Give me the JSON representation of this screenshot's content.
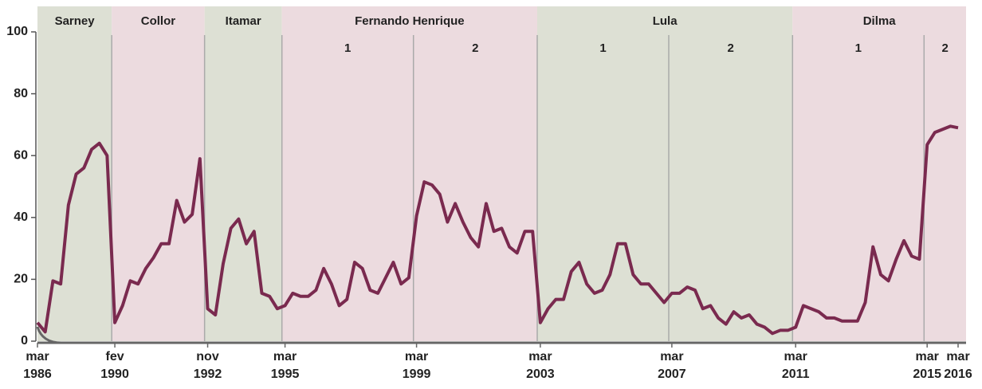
{
  "chart_data": {
    "type": "line",
    "categories": [
      "mar\n1986",
      null,
      null,
      null,
      null,
      null,
      null,
      null,
      null,
      null,
      "fev\n1990",
      null,
      null,
      null,
      null,
      null,
      null,
      null,
      null,
      null,
      null,
      null,
      "nov\n1992",
      null,
      null,
      null,
      null,
      null,
      null,
      null,
      null,
      null,
      "mar\n1995",
      null,
      null,
      null,
      null,
      null,
      null,
      null,
      null,
      null,
      null,
      null,
      null,
      null,
      null,
      null,
      null,
      "mar\n1999",
      null,
      null,
      null,
      null,
      null,
      null,
      null,
      null,
      null,
      null,
      null,
      null,
      null,
      null,
      null,
      "mar\n2003",
      null,
      null,
      null,
      null,
      null,
      null,
      null,
      null,
      null,
      null,
      null,
      null,
      null,
      null,
      null,
      null,
      "mar\n2007",
      null,
      null,
      null,
      null,
      null,
      null,
      null,
      null,
      null,
      null,
      null,
      null,
      null,
      null,
      null,
      "mar\n2011",
      null,
      null,
      null,
      null,
      null,
      null,
      null,
      null,
      null,
      null,
      null,
      null,
      null,
      null,
      null,
      null,
      "mar\n2015",
      null,
      null,
      null,
      "mar\n2016"
    ],
    "series": [
      {
        "color": "#7a2a4f",
        "values": [
          6,
          3,
          19.5,
          18.5,
          44,
          54,
          56,
          62,
          64,
          60,
          6,
          11.5,
          19.5,
          18.5,
          23.5,
          27,
          31.5,
          31.5,
          45.5,
          38.5,
          41,
          59,
          10.5,
          8.5,
          25,
          36.5,
          39.5,
          31.5,
          35.5,
          15.5,
          14.5,
          10.5,
          11.5,
          15.5,
          14.5,
          14.5,
          16.5,
          23.5,
          18.5,
          11.5,
          13.5,
          25.5,
          23.5,
          16.5,
          15.5,
          20.5,
          25.5,
          18.5,
          20.5,
          40.5,
          51.5,
          50.5,
          47.5,
          38.5,
          44.5,
          38.5,
          33.5,
          30.5,
          44.5,
          35.5,
          36.5,
          30.5,
          28.5,
          35.5,
          35.5,
          6,
          10.5,
          13.5,
          13.5,
          22.5,
          25.5,
          18.5,
          15.5,
          16.5,
          21.5,
          31.5,
          31.5,
          21.5,
          18.5,
          18.5,
          15.5,
          12.5,
          15.5,
          15.5,
          17.5,
          16.5,
          10.5,
          11.5,
          7.5,
          5.5,
          9.5,
          7.5,
          8.5,
          5.5,
          4.5,
          2.5,
          3.5,
          3.5,
          4.5,
          11.5,
          10.5,
          9.5,
          7.5,
          7.5,
          6.5,
          6.5,
          6.5,
          12.5,
          30.5,
          21.5,
          19.5,
          26.5,
          32.5,
          27.5,
          26.5,
          63.5,
          67.5,
          68.5,
          69.5,
          69
        ]
      }
    ],
    "ylim": [
      0,
      100
    ],
    "yticks": [
      0,
      20,
      40,
      60,
      80,
      100
    ],
    "periods": [
      {
        "name": "Sarney",
        "start": 0,
        "end": 10,
        "color": "#dde0d4"
      },
      {
        "name": "Collor",
        "start": 10,
        "end": 22,
        "color": "#ecdbdf"
      },
      {
        "name": "Itamar",
        "start": 22,
        "end": 32,
        "color": "#dde0d4"
      },
      {
        "name": "Fernando Henrique",
        "start": 32,
        "end": 65,
        "color": "#ecdbdf",
        "terms": [
          {
            "label": "1",
            "start": 32,
            "end": 49
          },
          {
            "label": "2",
            "start": 49,
            "end": 65
          }
        ]
      },
      {
        "name": "Lula",
        "start": 65,
        "end": 98,
        "color": "#dde0d4",
        "terms": [
          {
            "label": "1",
            "start": 65,
            "end": 82
          },
          {
            "label": "2",
            "start": 82,
            "end": 98
          }
        ]
      },
      {
        "name": "Dilma",
        "start": 98,
        "end": 119,
        "color": "#ecdbdf",
        "terms": [
          {
            "label": "1",
            "start": 98,
            "end": 115
          },
          {
            "label": "2",
            "start": 115,
            "end": 119
          }
        ]
      }
    ]
  }
}
